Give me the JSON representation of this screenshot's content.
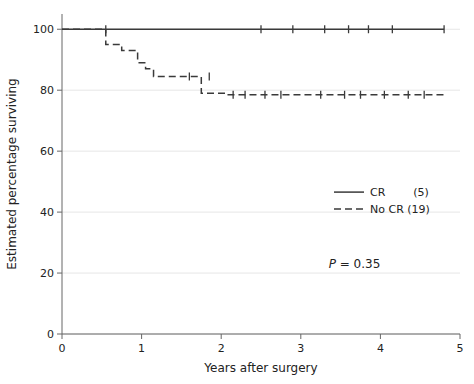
{
  "chart_data": {
    "type": "line",
    "x_label": "Years after surgery",
    "y_label": "Estimated percentage surviving",
    "xlim": [
      0,
      5
    ],
    "ylim": [
      0,
      105
    ],
    "xticks": [
      0,
      1,
      2,
      3,
      4,
      5
    ],
    "yticks": [
      0,
      20,
      40,
      60,
      80,
      100
    ],
    "legend": "right",
    "series": [
      {
        "name": "CR        (5)",
        "type": "line",
        "line_style": "solid",
        "color": "#3a3a3a",
        "x": [
          0,
          4.8
        ],
        "values": [
          100,
          100
        ]
      },
      {
        "name": "No CR (19)",
        "type": "step",
        "line_style": "dashed",
        "color": "#3a3a3a",
        "x": [
          0,
          0.55,
          0.55,
          0.75,
          0.75,
          0.95,
          0.95,
          1.05,
          1.05,
          1.15,
          1.15,
          1.5,
          1.5,
          1.75,
          1.75,
          2.05,
          2.05,
          4.8
        ],
        "values": [
          100,
          100,
          95,
          95,
          93,
          93,
          89,
          89,
          87,
          87,
          84.5,
          84.5,
          84.5,
          84.5,
          79,
          79,
          78.5,
          78.5
        ]
      },
      {
        "type": "scatter",
        "marker": "tick",
        "color": "#3a3a3a",
        "x": [
          0.55,
          2.5,
          2.9,
          3.3,
          3.6,
          3.85,
          4.15,
          4.8
        ],
        "values": [
          100,
          100,
          100,
          100,
          100,
          100,
          100,
          100
        ]
      },
      {
        "type": "scatter",
        "marker": "tick",
        "color": "#3a3a3a",
        "x": [
          1.6,
          1.85,
          2.15,
          2.3,
          2.55,
          2.75,
          3.25,
          3.55,
          3.75,
          4.05,
          4.35,
          4.55
        ],
        "values": [
          84.5,
          84.5,
          78.5,
          78.5,
          78.5,
          78.5,
          78.5,
          78.5,
          78.5,
          78.5,
          78.5,
          78.5
        ]
      }
    ],
    "annotations": [
      {
        "text": "P = 0.35"
      }
    ]
  }
}
